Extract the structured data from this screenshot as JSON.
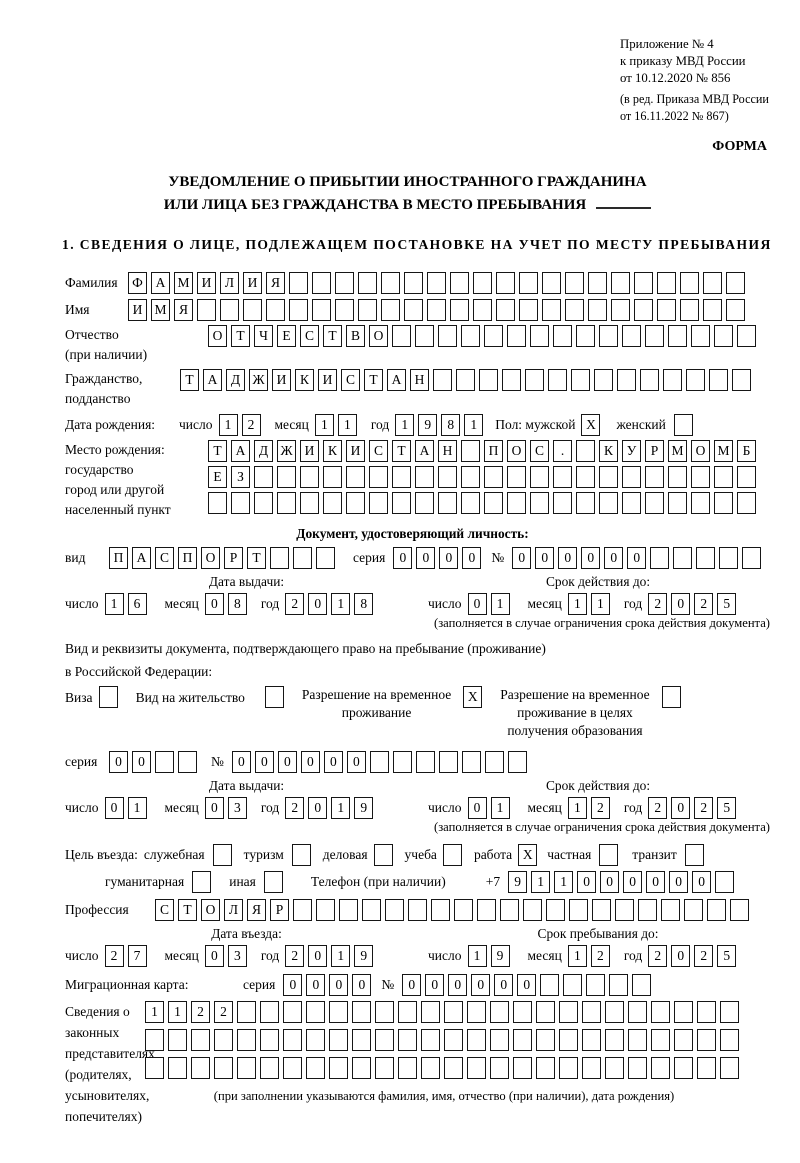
{
  "colors": {
    "ink": "#000000",
    "paper": "#ffffff"
  },
  "header": {
    "appendix": [
      "Приложение № 4",
      "к приказу МВД России",
      "от 10.12.2020 № 856",
      "(в ред. Приказа МВД России",
      "от 16.11.2022 № 867)"
    ],
    "forma": "ФОРМА"
  },
  "title": {
    "line1": "УВЕДОМЛЕНИЕ О ПРИБЫТИИ ИНОСТРАННОГО ГРАЖДАНИНА",
    "line2": "ИЛИ ЛИЦА БЕЗ ГРАЖДАНСТВА В МЕСТО ПРЕБЫВАНИЯ"
  },
  "section1": {
    "heading": "1. СВЕДЕНИЯ О ЛИЦЕ, ПОДЛЕЖАЩЕМ ПОСТАНОВКЕ НА УЧЕТ ПО МЕСТУ ПРЕБЫВАНИЯ"
  },
  "labels": {
    "surname": "Фамилия",
    "name": "Имя",
    "patronymic_1": "Отчество",
    "patronymic_2": "(при наличии)",
    "citizenship_1": "Гражданство,",
    "citizenship_2": "подданство",
    "birth_date": "Дата рождения:",
    "day": "число",
    "month": "месяц",
    "year": "год",
    "sex_male": "Пол: мужской",
    "sex_female": "женский",
    "birthplace": [
      "Место рождения:",
      "государство",
      "город или другой",
      "населенный пункт"
    ],
    "identity_doc": "Документ, удостоверяющий личность:",
    "doc_kind": "вид",
    "series": "серия",
    "number": "№",
    "issue_date": "Дата выдачи:",
    "valid_until": "Срок действия до:",
    "valid_note": "(заполняется в случае ограничения срока действия документа)",
    "residence_doc_1": "Вид и реквизиты документа, подтверждающего право на пребывание (проживание)",
    "residence_doc_2": "в Российской Федерации:",
    "visa": "Виза",
    "residence_permit": "Вид на жительство",
    "temp_permit": [
      "Разрешение на временное",
      "проживание"
    ],
    "temp_permit_edu": [
      "Разрешение на временное",
      "проживание в целях",
      "получения образования"
    ],
    "purpose_label": "Цель въезда:",
    "purpose_options": [
      "служебная",
      "туризм",
      "деловая",
      "учеба",
      "работа",
      "частная",
      "транзит",
      "гуманитарная",
      "иная"
    ],
    "phone_label": "Телефон (при наличии)",
    "phone_prefix": "+7",
    "profession": "Профессия",
    "entry_date": "Дата въезда:",
    "stay_until": "Срок пребывания до:",
    "migration_card": "Миграционная карта:",
    "representatives": [
      "Сведения о",
      "законных",
      "представителях",
      "(родителях,",
      "усыновителях,",
      "попечителях)"
    ],
    "representatives_note": "(при заполнении указываются фамилия, имя, отчество (при наличии), дата рождения)"
  },
  "fields": {
    "surname": {
      "text": "ФАМИЛИЯ",
      "len": 27
    },
    "given_name": {
      "text": "ИМЯ",
      "len": 27
    },
    "patronymic": {
      "text": "ОТЧЕСТВО",
      "len": 24
    },
    "citizenship": {
      "text": "ТАДЖИКИСТАН",
      "len": 25
    },
    "birth_d": {
      "text": "12",
      "len": 2
    },
    "birth_m": {
      "text": "11",
      "len": 2
    },
    "birth_y": {
      "text": "1981",
      "len": 4
    },
    "sex_male": {
      "text": "X",
      "len": 1
    },
    "sex_female": {
      "text": "",
      "len": 1
    },
    "birthplace1": {
      "text": "ТАДЖИКИСТАН ПОС. КУРМОМБ",
      "len": 24
    },
    "birthplace2": {
      "text": "ЕЗ",
      "len": 24
    },
    "birthplace3": {
      "text": "",
      "len": 24
    },
    "doc_kind": {
      "text": "ПАСПОРТ",
      "len": 10
    },
    "doc_series": {
      "text": "0000",
      "len": 4
    },
    "doc_number": {
      "text": "000000",
      "len": 11
    },
    "doc_issue_d": {
      "text": "16",
      "len": 2
    },
    "doc_issue_m": {
      "text": "08",
      "len": 2
    },
    "doc_issue_y": {
      "text": "2018",
      "len": 4
    },
    "doc_valid_d": {
      "text": "01",
      "len": 2
    },
    "doc_valid_m": {
      "text": "11",
      "len": 2
    },
    "doc_valid_y": {
      "text": "2025",
      "len": 4
    },
    "cb_visa": {
      "text": "",
      "len": 1
    },
    "cb_residence": {
      "text": "",
      "len": 1
    },
    "cb_temp_permit": {
      "text": "X",
      "len": 1
    },
    "cb_temp_permit_edu": {
      "text": "",
      "len": 1
    },
    "permit_series": {
      "text": "00",
      "len": 4
    },
    "permit_number": {
      "text": "000000",
      "len": 13
    },
    "permit_issue_d": {
      "text": "01",
      "len": 2
    },
    "permit_issue_m": {
      "text": "03",
      "len": 2
    },
    "permit_issue_y": {
      "text": "2019",
      "len": 4
    },
    "permit_valid_d": {
      "text": "01",
      "len": 2
    },
    "permit_valid_m": {
      "text": "12",
      "len": 2
    },
    "permit_valid_y": {
      "text": "2025",
      "len": 4
    },
    "purpose_cb": [
      {
        "text": "",
        "len": 1
      },
      {
        "text": "",
        "len": 1
      },
      {
        "text": "",
        "len": 1
      },
      {
        "text": "",
        "len": 1
      },
      {
        "text": "X",
        "len": 1
      },
      {
        "text": "",
        "len": 1
      },
      {
        "text": "",
        "len": 1
      },
      {
        "text": "",
        "len": 1
      },
      {
        "text": "",
        "len": 1
      }
    ],
    "phone": {
      "text": "911000000",
      "len": 10
    },
    "profession": {
      "text": "СТОЛЯР",
      "len": 26
    },
    "entry_d": {
      "text": "27",
      "len": 2
    },
    "entry_m": {
      "text": "03",
      "len": 2
    },
    "entry_y": {
      "text": "2019",
      "len": 4
    },
    "stay_d": {
      "text": "19",
      "len": 2
    },
    "stay_m": {
      "text": "12",
      "len": 2
    },
    "stay_y": {
      "text": "2025",
      "len": 4
    },
    "mig_series": {
      "text": "0000",
      "len": 4
    },
    "mig_number": {
      "text": "000000",
      "len": 11
    },
    "rep_row1": {
      "text": "1122",
      "len": 26
    },
    "rep_row2": {
      "text": "",
      "len": 26
    },
    "rep_row3": {
      "text": "",
      "len": 26
    }
  }
}
